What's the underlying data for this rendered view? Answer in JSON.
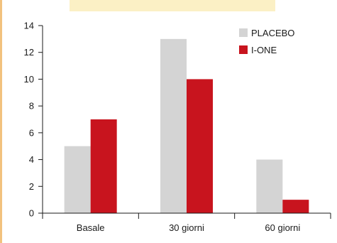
{
  "chart_data": {
    "type": "bar",
    "categories": [
      "Basale",
      "30 giorni",
      "60 giorni"
    ],
    "series": [
      {
        "name": "PLACEBO",
        "values": [
          5,
          13,
          4
        ],
        "color": "#d4d4d4"
      },
      {
        "name": "I-ONE",
        "values": [
          7,
          10,
          1
        ],
        "color": "#c8141e"
      }
    ],
    "ylim": [
      0,
      14
    ],
    "yticks": [
      0,
      2,
      4,
      6,
      8,
      10,
      12,
      14
    ],
    "title": "",
    "xlabel": "",
    "ylabel": "",
    "legend_position": "top-right",
    "grid": false
  },
  "colors": {
    "background": "#ffffff",
    "accent_border": "#f2c27e",
    "top_band": "#fbf0c5",
    "axis": "#1a1a1a"
  }
}
